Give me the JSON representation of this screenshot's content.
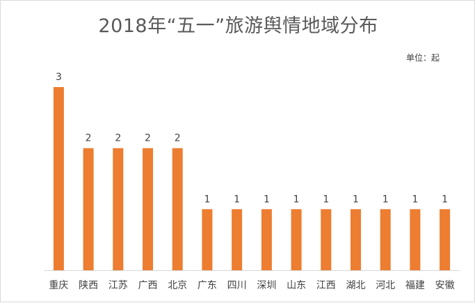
{
  "chart_data": {
    "type": "bar",
    "title": "2018年“五一”旅游舆情地域分布",
    "unit_label": "单位：起",
    "categories": [
      "重庆",
      "陕西",
      "江苏",
      "广西",
      "北京",
      "广东",
      "四川",
      "深圳",
      "山东",
      "江西",
      "湖北",
      "河北",
      "福建",
      "安徽"
    ],
    "values": [
      3,
      2,
      2,
      2,
      2,
      1,
      1,
      1,
      1,
      1,
      1,
      1,
      1,
      1
    ],
    "xlabel": "",
    "ylabel": "",
    "ylim": [
      0,
      3
    ],
    "grid": false,
    "legend": "none",
    "data_labels": true,
    "bar_color": "#ed7d31"
  }
}
